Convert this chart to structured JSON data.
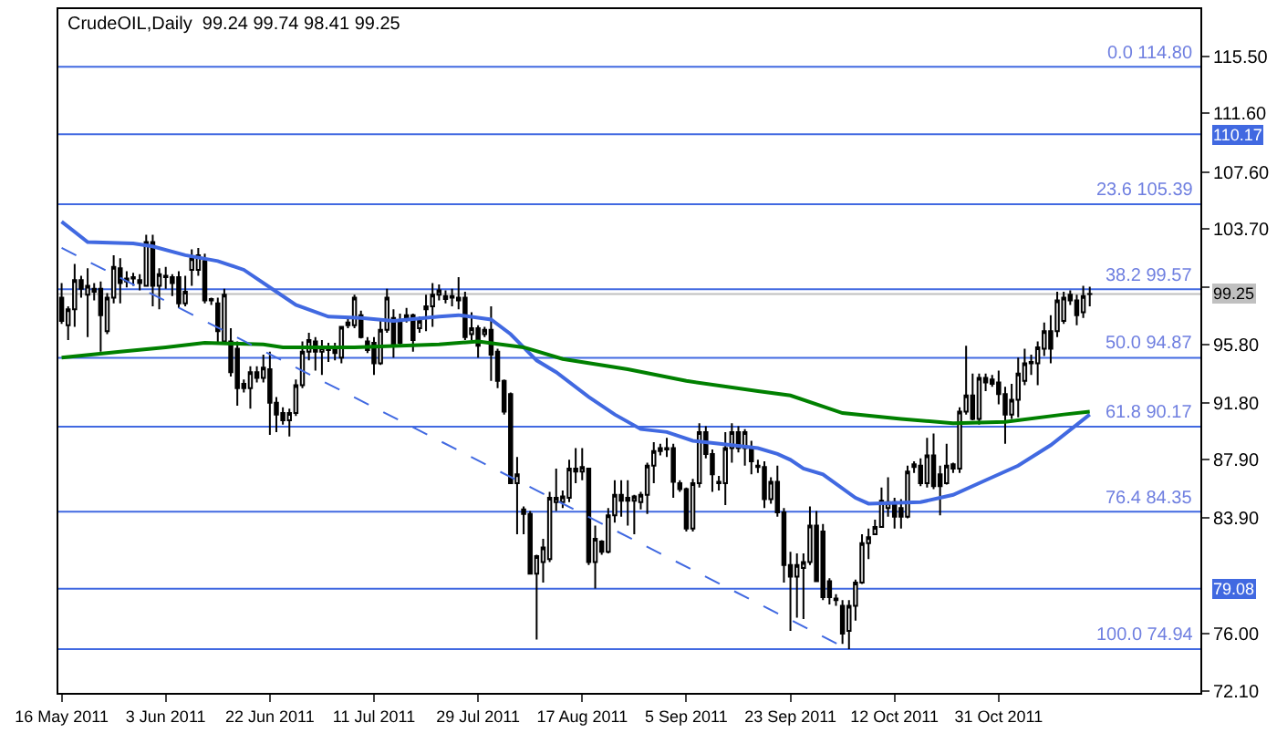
{
  "chart_data": {
    "type": "candlestick",
    "title": "CrudeOIL,Daily  99.24 99.74 98.41 99.25",
    "color": "#000000",
    "categories": [
      "16 May 2011",
      null,
      null,
      null,
      null,
      null,
      null,
      null,
      null,
      null,
      null,
      null,
      null,
      null,
      null,
      null,
      "3 Jun 2011",
      null,
      null,
      null,
      null,
      null,
      null,
      null,
      null,
      null,
      null,
      null,
      null,
      null,
      null,
      null,
      "22 Jun 2011",
      null,
      null,
      null,
      null,
      null,
      null,
      null,
      null,
      null,
      null,
      null,
      null,
      null,
      null,
      null,
      "11 Jul 2011",
      null,
      null,
      null,
      null,
      null,
      null,
      null,
      null,
      null,
      null,
      null,
      null,
      null,
      null,
      null,
      "29 Jul 2011",
      null,
      null,
      null,
      null,
      null,
      null,
      null,
      null,
      null,
      null,
      null,
      null,
      null,
      null,
      null,
      "17 Aug 2011",
      null,
      null,
      null,
      null,
      null,
      null,
      null,
      null,
      null,
      null,
      null,
      null,
      null,
      null,
      null,
      "5 Sep 2011",
      null,
      null,
      null,
      null,
      null,
      null,
      null,
      null,
      null,
      null,
      null,
      null,
      null,
      null,
      null,
      "23 Sep 2011",
      null,
      null,
      null,
      null,
      null,
      null,
      null,
      null,
      null,
      null,
      null,
      null,
      null,
      null,
      null,
      "12 Oct 2011",
      null,
      null,
      null,
      null,
      null,
      null,
      null,
      null,
      null,
      null,
      null,
      null,
      null,
      null,
      null,
      "31 Oct 2011",
      null,
      null,
      null,
      null,
      null,
      null,
      null,
      null,
      null,
      null,
      null,
      null,
      null,
      null
    ],
    "ohlc": [
      [
        99.0,
        100.0,
        97.2,
        97.4
      ],
      [
        97.1,
        98.4,
        96.1,
        98.2
      ],
      [
        98.2,
        101.3,
        97.0,
        100.2
      ],
      [
        100.2,
        100.5,
        99.0,
        99.6
      ],
      [
        99.2,
        101.0,
        96.3,
        99.8
      ],
      [
        99.6,
        100.0,
        98.8,
        99.4
      ],
      [
        99.6,
        100.1,
        95.3,
        97.8
      ],
      [
        96.7,
        99.3,
        96.5,
        99.0
      ],
      [
        99.0,
        101.9,
        98.6,
        101.1
      ],
      [
        101.0,
        101.7,
        98.6,
        100.0
      ],
      [
        100.3,
        100.8,
        99.7,
        100.1
      ],
      [
        100.4,
        100.7,
        99.8,
        100.3
      ],
      [
        100.2,
        100.6,
        99.5,
        100.0
      ],
      [
        99.8,
        103.3,
        99.8,
        102.8
      ],
      [
        102.8,
        103.3,
        98.4,
        99.8
      ],
      [
        99.8,
        101.0,
        98.2,
        100.6
      ],
      [
        100.5,
        101.1,
        99.6,
        100.4
      ],
      [
        100.4,
        100.6,
        99.1,
        100.0
      ],
      [
        100.4,
        100.8,
        98.3,
        98.6
      ],
      [
        98.6,
        100.5,
        98.4,
        99.4
      ],
      [
        100.9,
        102.3,
        99.8,
        101.7
      ],
      [
        100.9,
        102.4,
        100.5,
        101.9
      ],
      [
        101.5,
        102.0,
        98.6,
        98.8
      ],
      [
        98.8,
        99.0,
        98.5,
        98.9
      ],
      [
        98.6,
        99.0,
        95.9,
        96.7
      ],
      [
        96.0,
        99.6,
        95.9,
        99.2
      ],
      [
        96.0,
        96.9,
        93.6,
        93.9
      ],
      [
        95.5,
        96.0,
        91.6,
        92.8
      ],
      [
        93.1,
        93.4,
        92.5,
        92.8
      ],
      [
        92.8,
        94.3,
        91.4,
        93.9
      ],
      [
        93.9,
        94.3,
        93.2,
        93.5
      ],
      [
        93.5,
        95.1,
        93.2,
        94.2
      ],
      [
        94.1,
        95.3,
        89.6,
        91.8
      ],
      [
        91.8,
        92.2,
        89.8,
        91.0
      ],
      [
        91.1,
        91.5,
        90.3,
        90.6
      ],
      [
        90.6,
        91.4,
        89.5,
        91.1
      ],
      [
        91.1,
        93.4,
        90.9,
        93.0
      ],
      [
        93.0,
        96.0,
        92.8,
        95.3
      ],
      [
        95.3,
        96.6,
        94.7,
        96.1
      ],
      [
        96.0,
        96.3,
        94.0,
        95.3
      ],
      [
        95.3,
        96.1,
        93.7,
        95.6
      ],
      [
        95.6,
        95.9,
        94.6,
        95.4
      ],
      [
        95.4,
        95.9,
        94.7,
        95.2
      ],
      [
        94.9,
        97.0,
        94.5,
        97.0
      ],
      [
        97.1,
        97.6,
        96.9,
        97.3
      ],
      [
        97.1,
        99.2,
        96.9,
        99.0
      ],
      [
        97.8,
        98.1,
        96.2,
        96.3
      ],
      [
        96.0,
        96.3,
        95.2,
        95.4
      ],
      [
        95.9,
        96.3,
        93.7,
        94.5
      ],
      [
        94.5,
        97.4,
        94.4,
        96.8
      ],
      [
        96.8,
        99.6,
        96.6,
        99.0
      ],
      [
        97.6,
        98.2,
        94.9,
        95.7
      ],
      [
        97.4,
        97.9,
        95.7,
        95.9
      ],
      [
        97.6,
        98.3,
        97.3,
        97.8
      ],
      [
        97.8,
        97.9,
        95.3,
        96.1
      ],
      [
        96.9,
        97.7,
        96.6,
        97.4
      ],
      [
        98.2,
        99.2,
        96.7,
        98.4
      ],
      [
        98.4,
        100.0,
        97.0,
        99.2
      ],
      [
        99.2,
        99.9,
        98.8,
        99.5
      ],
      [
        99.1,
        99.5,
        98.6,
        98.9
      ],
      [
        99.0,
        99.6,
        98.4,
        99.1
      ],
      [
        99.0,
        100.4,
        98.2,
        98.8
      ],
      [
        99.0,
        99.4,
        96.1,
        96.3
      ],
      [
        96.5,
        98.0,
        96.1,
        96.9
      ],
      [
        96.9,
        97.1,
        94.9,
        95.7
      ],
      [
        96.5,
        97.0,
        96.3,
        96.8
      ],
      [
        96.8,
        98.4,
        93.3,
        95.1
      ],
      [
        95.3,
        95.5,
        92.8,
        93.3
      ],
      [
        93.3,
        93.4,
        91.0,
        91.2
      ],
      [
        92.4,
        92.5,
        86.3,
        86.3
      ],
      [
        86.3,
        88.1,
        82.8,
        86.9
      ],
      [
        84.5,
        84.7,
        82.8,
        84.2
      ],
      [
        84.2,
        84.4,
        80.1,
        80.1
      ],
      [
        80.1,
        81.4,
        75.6,
        81.3
      ],
      [
        80.9,
        82.5,
        79.5,
        81.9
      ],
      [
        81.1,
        85.7,
        80.9,
        85.3
      ],
      [
        85.0,
        87.3,
        84.4,
        85.3
      ],
      [
        85.0,
        85.8,
        84.6,
        85.4
      ],
      [
        85.3,
        87.9,
        85.0,
        87.3
      ],
      [
        87.3,
        88.7,
        86.3,
        87.1
      ],
      [
        87.1,
        88.7,
        86.5,
        87.4
      ],
      [
        87.3,
        87.3,
        80.7,
        80.9
      ],
      [
        80.9,
        83.4,
        79.1,
        82.5
      ],
      [
        82.3,
        82.4,
        81.4,
        81.6
      ],
      [
        81.6,
        84.6,
        81.5,
        84.1
      ],
      [
        84.1,
        86.5,
        83.6,
        85.5
      ],
      [
        85.5,
        86.5,
        84.0,
        85.1
      ],
      [
        85.3,
        86.5,
        83.4,
        85.1
      ],
      [
        85.1,
        85.5,
        82.8,
        85.4
      ],
      [
        85.0,
        85.7,
        84.5,
        85.5
      ],
      [
        85.5,
        87.7,
        84.2,
        87.5
      ],
      [
        87.5,
        89.1,
        86.3,
        88.5
      ],
      [
        88.5,
        89.0,
        88.2,
        88.7
      ],
      [
        88.7,
        89.4,
        88.1,
        88.6
      ],
      [
        88.7,
        89.0,
        85.3,
        86.4
      ],
      [
        86.3,
        86.5,
        85.7,
        85.9
      ],
      [
        85.9,
        86.0,
        83.0,
        83.2
      ],
      [
        83.2,
        86.6,
        83.0,
        86.3
      ],
      [
        86.3,
        90.4,
        86.0,
        89.8
      ],
      [
        89.8,
        90.2,
        88.0,
        88.3
      ],
      [
        88.3,
        88.6,
        85.7,
        86.9
      ],
      [
        86.4,
        86.8,
        85.8,
        86.3
      ],
      [
        86.3,
        89.8,
        84.8,
        88.7
      ],
      [
        88.7,
        90.4,
        87.7,
        89.8
      ],
      [
        89.8,
        90.2,
        88.4,
        88.7
      ],
      [
        88.7,
        90.0,
        87.5,
        89.8
      ],
      [
        88.7,
        89.2,
        86.9,
        87.8
      ],
      [
        87.5,
        87.9,
        87.0,
        87.4
      ],
      [
        87.4,
        87.8,
        84.6,
        85.2
      ],
      [
        85.2,
        86.7,
        84.9,
        86.4
      ],
      [
        86.4,
        87.5,
        84.0,
        84.3
      ],
      [
        84.3,
        84.6,
        79.5,
        80.7
      ],
      [
        80.7,
        81.6,
        76.2,
        79.9
      ],
      [
        79.9,
        81.5,
        77.1,
        80.7
      ],
      [
        80.5,
        81.5,
        77.0,
        80.9
      ],
      [
        80.9,
        84.7,
        80.7,
        83.4
      ],
      [
        83.4,
        84.4,
        79.6,
        79.6
      ],
      [
        83.0,
        83.5,
        78.3,
        78.5
      ],
      [
        79.6,
        79.8,
        78.0,
        78.5
      ],
      [
        78.4,
        78.7,
        77.9,
        78.3
      ],
      [
        77.9,
        78.3,
        75.3,
        76.0
      ],
      [
        76.2,
        78.3,
        74.94,
        77.9
      ],
      [
        77.9,
        79.7,
        76.9,
        79.5
      ],
      [
        79.5,
        82.8,
        79.4,
        82.2
      ],
      [
        82.2,
        83.2,
        81.1,
        82.6
      ],
      [
        82.8,
        83.8,
        82.8,
        83.3
      ],
      [
        83.3,
        86.0,
        83.3,
        85.1
      ],
      [
        84.6,
        86.7,
        84.0,
        85.0
      ],
      [
        85.0,
        85.3,
        83.2,
        84.0
      ],
      [
        84.6,
        85.2,
        83.2,
        84.0
      ],
      [
        84.0,
        87.5,
        83.9,
        87.1
      ],
      [
        87.6,
        87.8,
        87.0,
        87.4
      ],
      [
        87.5,
        88.0,
        86.1,
        86.3
      ],
      [
        86.3,
        89.4,
        86.0,
        88.2
      ],
      [
        88.2,
        89.7,
        85.9,
        86.1
      ],
      [
        86.9,
        87.5,
        84.1,
        86.1
      ],
      [
        86.3,
        89.0,
        86.2,
        87.5
      ],
      [
        87.6,
        87.7,
        87.0,
        87.3
      ],
      [
        87.3,
        91.5,
        87.0,
        91.2
      ],
      [
        91.2,
        95.7,
        91.0,
        92.3
      ],
      [
        92.3,
        93.8,
        90.6,
        90.7
      ],
      [
        90.7,
        93.8,
        90.3,
        93.5
      ],
      [
        93.5,
        93.8,
        92.6,
        93.2
      ],
      [
        93.4,
        93.7,
        92.9,
        93.1
      ],
      [
        93.2,
        94.0,
        91.7,
        92.4
      ],
      [
        92.4,
        92.9,
        89.0,
        91.0
      ],
      [
        91.0,
        93.1,
        90.7,
        92.0
      ],
      [
        92.0,
        94.9,
        90.8,
        93.8
      ],
      [
        93.3,
        95.5,
        93.0,
        94.5
      ],
      [
        94.5,
        95.1,
        93.7,
        94.6
      ],
      [
        94.5,
        96.0,
        93.0,
        95.6
      ],
      [
        95.5,
        97.3,
        95.0,
        96.7
      ],
      [
        96.7,
        97.8,
        94.5,
        95.5
      ],
      [
        96.7,
        99.4,
        96.3,
        98.8
      ],
      [
        97.4,
        99.4,
        97.2,
        99.0
      ],
      [
        99.2,
        99.5,
        98.5,
        98.8
      ],
      [
        98.8,
        99.2,
        97.1,
        97.8
      ],
      [
        98.0,
        99.8,
        97.6,
        99.1
      ],
      [
        99.24,
        99.74,
        98.41,
        99.25
      ]
    ],
    "series": [
      {
        "type": "line",
        "color": "#4169e1",
        "values": [
          104.2,
          null,
          null,
          null,
          102.8,
          null,
          null,
          null,
          null,
          null,
          null,
          102.7,
          null,
          null,
          102.5,
          null,
          null,
          null,
          null,
          101.9,
          null,
          null,
          null,
          null,
          101.5,
          null,
          null,
          null,
          100.9,
          null,
          null,
          null,
          null,
          99.4,
          null,
          null,
          98.5,
          null,
          null,
          null,
          null,
          97.7,
          null,
          null,
          null,
          null,
          97.6,
          null,
          null,
          null,
          null,
          97.4,
          null,
          null,
          null,
          null,
          null,
          null,
          97.7,
          null,
          null,
          97.8,
          null,
          null,
          null,
          null,
          97.5,
          null,
          null,
          96.5,
          null,
          null,
          null,
          94.7,
          null,
          null,
          93.9,
          null,
          null,
          null,
          null,
          92.2,
          null,
          null,
          null,
          91.0,
          null,
          null,
          null,
          90.0,
          null,
          null,
          null,
          89.8,
          null,
          null,
          null,
          89.2,
          null,
          null,
          null,
          null,
          null,
          88.9,
          null,
          null,
          null,
          88.7,
          null,
          null,
          88.3,
          null,
          87.9,
          null,
          87.3,
          null,
          null,
          86.9,
          null,
          null,
          null,
          null,
          85.3,
          null,
          84.9,
          null,
          null,
          null,
          null,
          null,
          null,
          null,
          85.0,
          null,
          null,
          null,
          null,
          85.5,
          null,
          null,
          null,
          null,
          86.5,
          null,
          null,
          null,
          null,
          87.5,
          null,
          null,
          null,
          null,
          88.9,
          null,
          null,
          null,
          null,
          null,
          91.0
        ]
      },
      {
        "type": "line",
        "color": "#008000",
        "values": [
          94.9,
          null,
          null,
          null,
          null,
          null,
          null,
          null,
          null,
          95.3,
          null,
          null,
          null,
          null,
          null,
          null,
          95.6,
          null,
          null,
          null,
          null,
          null,
          95.9,
          null,
          null,
          null,
          null,
          null,
          null,
          null,
          null,
          95.8,
          null,
          null,
          95.6,
          null,
          null,
          null,
          null,
          null,
          null,
          null,
          null,
          null,
          null,
          95.6,
          null,
          null,
          null,
          null,
          null,
          null,
          null,
          null,
          null,
          null,
          null,
          null,
          95.8,
          null,
          null,
          null,
          null,
          null,
          96.0,
          null,
          null,
          null,
          null,
          null,
          null,
          95.6,
          null,
          null,
          null,
          null,
          null,
          94.8,
          null,
          null,
          null,
          null,
          null,
          null,
          null,
          null,
          null,
          94.1,
          null,
          null,
          null,
          null,
          null,
          null,
          null,
          null,
          93.3,
          null,
          null,
          null,
          null,
          null,
          null,
          null,
          null,
          null,
          null,
          92.6,
          null,
          null,
          null,
          null,
          92.3,
          null,
          null,
          null,
          null,
          null,
          null,
          null,
          91.1,
          null,
          null,
          null,
          null,
          null,
          null,
          null,
          null,
          90.7,
          null,
          null,
          null,
          null,
          null,
          null,
          null,
          90.4,
          null,
          null,
          null,
          null,
          null,
          null,
          null,
          90.5,
          null,
          null,
          null,
          null,
          null,
          null,
          null,
          null,
          91.0,
          null,
          null,
          null,
          91.2
        ]
      },
      {
        "type": "line",
        "color": "#4169e1",
        "line_style": "dashed",
        "values": [
          102.4,
          null,
          null,
          null,
          null,
          null,
          null,
          null,
          null,
          null,
          null,
          null,
          null,
          null,
          null,
          null,
          null,
          null,
          null,
          null,
          null,
          null,
          null,
          null,
          null,
          null,
          null,
          null,
          null,
          null,
          null,
          null,
          null,
          null,
          null,
          null,
          null,
          null,
          null,
          null,
          null,
          null,
          null,
          null,
          null,
          null,
          null,
          null,
          null,
          null,
          null,
          null,
          null,
          null,
          null,
          null,
          null,
          null,
          null,
          null,
          null,
          null,
          null,
          null,
          null,
          null,
          null,
          null,
          null,
          null,
          null,
          null,
          null,
          null,
          null,
          null,
          null,
          null,
          null,
          null,
          null,
          null,
          null,
          null,
          null,
          null,
          null,
          null,
          null,
          null,
          null,
          null,
          null,
          null,
          null,
          null,
          null,
          null,
          null,
          null,
          null,
          null,
          null,
          null,
          null,
          null,
          null,
          null,
          null,
          null,
          null,
          null,
          null,
          null,
          null,
          null,
          null,
          null,
          null,
          null,
          null,
          74.9,
          null,
          null,
          null,
          null,
          null,
          null,
          null,
          null,
          null,
          null,
          null,
          null,
          null,
          null,
          null,
          null,
          null,
          null,
          null,
          null,
          null,
          null,
          null,
          null,
          null,
          null,
          null,
          null,
          null,
          null,
          null,
          null,
          null,
          null,
          null,
          null,
          null
        ]
      }
    ],
    "ref_lines": [
      {
        "axis": "y",
        "value": 114.8,
        "color": "#4169e1"
      },
      {
        "axis": "y",
        "value": 110.17,
        "label": "110.17",
        "color": "#4169e1"
      },
      {
        "axis": "y",
        "value": 105.39,
        "color": "#4169e1"
      },
      {
        "axis": "y",
        "value": 99.57,
        "color": "#4169e1"
      },
      {
        "axis": "y",
        "value": 99.25,
        "label": "99.25",
        "color": "#c0c0c0"
      },
      {
        "axis": "y",
        "value": 94.87,
        "color": "#4169e1"
      },
      {
        "axis": "y",
        "value": 90.17,
        "color": "#4169e1"
      },
      {
        "axis": "y",
        "value": 84.35,
        "color": "#4169e1"
      },
      {
        "axis": "y",
        "value": 79.08,
        "label": "79.08",
        "color": "#4169e1"
      },
      {
        "axis": "y",
        "value": 74.94,
        "color": "#4169e1"
      }
    ],
    "annotations": [
      {
        "text": "0.0 114.80",
        "y": 114.8
      },
      {
        "text": "23.6 105.39",
        "y": 105.39
      },
      {
        "text": "38.2 99.57",
        "y": 99.57
      },
      {
        "text": "50.0 94.87",
        "y": 94.87
      },
      {
        "text": "61.8 90.17",
        "y": 90.17
      },
      {
        "text": "76.4 84.35",
        "y": 84.35
      },
      {
        "text": "100.0 74.94",
        "y": 74.94
      }
    ],
    "ylim": [
      71.95,
      118.74
    ],
    "yticks": [
      "115.50",
      "111.60",
      "107.60",
      "103.70",
      {
        "value": 99.7,
        "label": null
      },
      "95.80",
      "91.80",
      "87.90",
      "83.90",
      "76.00",
      "72.10"
    ],
    "grid": false
  }
}
